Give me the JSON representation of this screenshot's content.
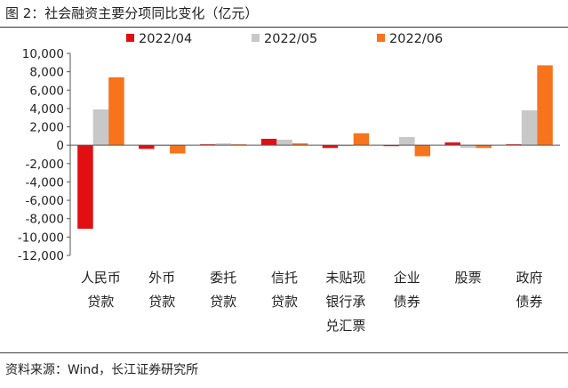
{
  "figure": {
    "title": "图 2：社会融资主要分项同比变化（亿元）",
    "source": "资料来源：Wind，长江证券研究所"
  },
  "colors": {
    "2022/04": "#e10e12",
    "2022/05": "#c8c8c8",
    "2022/06": "#f7731c"
  },
  "chart_data": {
    "type": "bar",
    "title": "",
    "xlabel": "",
    "ylabel": "",
    "ylim": [
      -12000,
      10000
    ],
    "yticks": [
      -12000,
      -10000,
      -8000,
      -6000,
      -4000,
      -2000,
      0,
      2000,
      4000,
      6000,
      8000,
      10000
    ],
    "ytick_labels": [
      "-12,000",
      "-10,000",
      "-8,000",
      "-6,000",
      "-4,000",
      "-2,000",
      "0",
      "2,000",
      "4,000",
      "6,000",
      "8,000",
      "10,000"
    ],
    "grid": false,
    "legend_position": "top",
    "categories": [
      "人民币贷款",
      "外币贷款",
      "委托贷款",
      "信托贷款",
      "未贴现银行承兑汇票",
      "企业债券",
      "股票",
      "政府债券"
    ],
    "category_label_lines": [
      [
        "人民币",
        "贷款"
      ],
      [
        "外币",
        "贷款"
      ],
      [
        "委托",
        "贷款"
      ],
      [
        "信托",
        "贷款"
      ],
      [
        "未贴现",
        "银行承",
        "兑汇票"
      ],
      [
        "企业",
        "债券"
      ],
      [
        "股票"
      ],
      [
        "政府",
        "债券"
      ]
    ],
    "series": [
      {
        "name": "2022/04",
        "values": [
          -9100,
          -400,
          100,
          700,
          -300,
          -100,
          300,
          100
        ]
      },
      {
        "name": "2022/05",
        "values": [
          3900,
          -100,
          200,
          600,
          -100,
          900,
          -300,
          3800
        ]
      },
      {
        "name": "2022/06",
        "values": [
          7400,
          -900,
          100,
          200,
          1300,
          -1200,
          -300,
          8700
        ]
      }
    ]
  }
}
